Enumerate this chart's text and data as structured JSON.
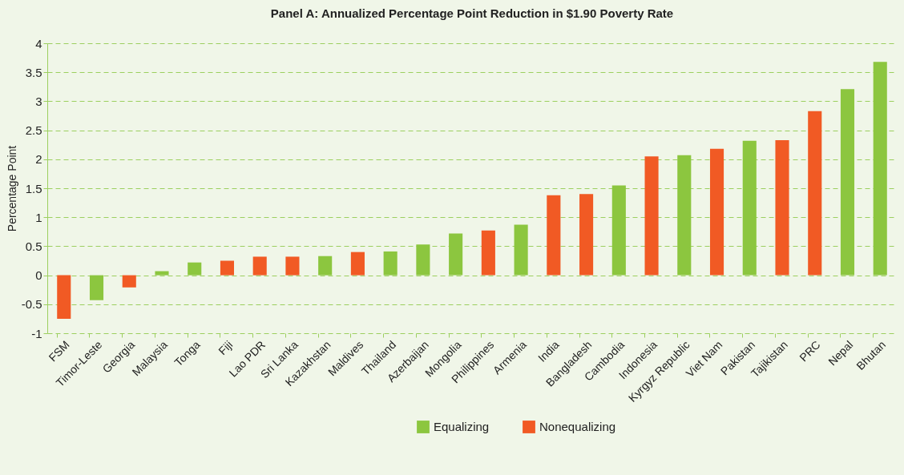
{
  "chart_data": {
    "type": "bar",
    "title": "Panel A: Annualized Percentage Point Reduction in $1.90 Poverty Rate",
    "ylabel": "Percentage Point",
    "categories": [
      "FSM",
      "Timor-Leste",
      "Georgia",
      "Malaysia",
      "Tonga",
      "Fiji",
      "Lao PDR",
      "Sri Lanka",
      "Kazakhstan",
      "Maldives",
      "Thailand",
      "Azerbaijan",
      "Mongolia",
      "Philippines",
      "Armenia",
      "India",
      "Bangladesh",
      "Cambodia",
      "Indonesia",
      "Kyrgyz Republic",
      "Viet Nam",
      "Pakistan",
      "Tajikistan",
      "PRC",
      "Nepal",
      "Bhutan"
    ],
    "series": [
      {
        "name": "Equalizing",
        "color": "#8cc63f",
        "values": [
          null,
          -0.43,
          null,
          0.07,
          0.22,
          null,
          null,
          null,
          0.33,
          null,
          0.41,
          0.53,
          0.72,
          null,
          0.87,
          null,
          null,
          1.55,
          null,
          2.07,
          null,
          2.32,
          null,
          null,
          3.21,
          3.68
        ]
      },
      {
        "name": "Nonequalizing",
        "color": "#f15a24",
        "values": [
          -0.75,
          null,
          -0.21,
          null,
          null,
          0.25,
          0.32,
          0.32,
          null,
          0.4,
          null,
          null,
          null,
          0.77,
          null,
          1.38,
          1.4,
          null,
          2.05,
          null,
          2.18,
          null,
          2.33,
          2.83,
          null,
          null
        ]
      }
    ],
    "stacked": true,
    "ylim": [
      -1,
      4
    ],
    "yticks": [
      -1,
      -0.5,
      0,
      0.5,
      1,
      1.5,
      2,
      2.5,
      3,
      3.5,
      4
    ],
    "grid": "y",
    "legend": "bottom"
  }
}
